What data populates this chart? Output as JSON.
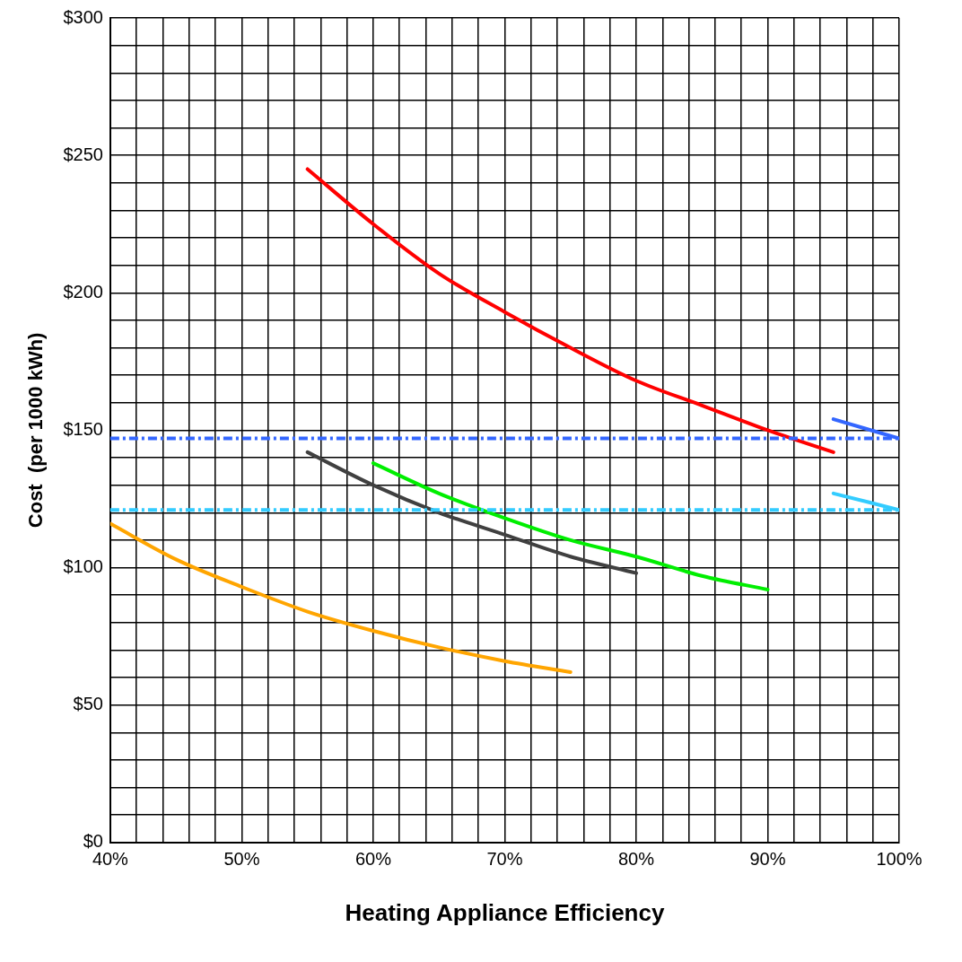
{
  "chart_data": {
    "type": "line",
    "xlabel": "Heating Appliance Efficiency",
    "ylabel": "Cost  (per 1000 kWh)",
    "xlim": [
      40,
      100
    ],
    "ylim": [
      0,
      300
    ],
    "xticks": [
      {
        "value": 40,
        "label": "40%"
      },
      {
        "value": 42,
        "label": null
      },
      {
        "value": 44,
        "label": null
      },
      {
        "value": 46,
        "label": null
      },
      {
        "value": 48,
        "label": null
      },
      {
        "value": 50,
        "label": "50%"
      },
      {
        "value": 52,
        "label": null
      },
      {
        "value": 54,
        "label": null
      },
      {
        "value": 56,
        "label": null
      },
      {
        "value": 58,
        "label": null
      },
      {
        "value": 60,
        "label": "60%"
      },
      {
        "value": 62,
        "label": null
      },
      {
        "value": 64,
        "label": null
      },
      {
        "value": 66,
        "label": null
      },
      {
        "value": 68,
        "label": null
      },
      {
        "value": 70,
        "label": "70%"
      },
      {
        "value": 72,
        "label": null
      },
      {
        "value": 74,
        "label": null
      },
      {
        "value": 76,
        "label": null
      },
      {
        "value": 78,
        "label": null
      },
      {
        "value": 80,
        "label": "80%"
      },
      {
        "value": 82,
        "label": null
      },
      {
        "value": 84,
        "label": null
      },
      {
        "value": 86,
        "label": null
      },
      {
        "value": 88,
        "label": null
      },
      {
        "value": 90,
        "label": "90%"
      },
      {
        "value": 92,
        "label": null
      },
      {
        "value": 94,
        "label": null
      },
      {
        "value": 96,
        "label": null
      },
      {
        "value": 98,
        "label": null
      },
      {
        "value": 100,
        "label": "100%"
      }
    ],
    "yticks": [
      {
        "value": 0,
        "label": "$0"
      },
      {
        "value": 10,
        "label": null
      },
      {
        "value": 20,
        "label": null
      },
      {
        "value": 30,
        "label": null
      },
      {
        "value": 40,
        "label": null
      },
      {
        "value": 50,
        "label": "$50"
      },
      {
        "value": 60,
        "label": null
      },
      {
        "value": 70,
        "label": null
      },
      {
        "value": 80,
        "label": null
      },
      {
        "value": 90,
        "label": null
      },
      {
        "value": 100,
        "label": "$100"
      },
      {
        "value": 110,
        "label": null
      },
      {
        "value": 120,
        "label": null
      },
      {
        "value": 130,
        "label": null
      },
      {
        "value": 140,
        "label": null
      },
      {
        "value": 150,
        "label": "$150"
      },
      {
        "value": 160,
        "label": null
      },
      {
        "value": 170,
        "label": null
      },
      {
        "value": 180,
        "label": null
      },
      {
        "value": 190,
        "label": null
      },
      {
        "value": 200,
        "label": "$200"
      },
      {
        "value": 210,
        "label": null
      },
      {
        "value": 220,
        "label": null
      },
      {
        "value": 230,
        "label": null
      },
      {
        "value": 240,
        "label": null
      },
      {
        "value": 250,
        "label": "$250"
      },
      {
        "value": 260,
        "label": null
      },
      {
        "value": 270,
        "label": null
      },
      {
        "value": 280,
        "label": null
      },
      {
        "value": 290,
        "label": null
      },
      {
        "value": 300,
        "label": "$300"
      }
    ],
    "grid": true,
    "legend": false,
    "marker": "none",
    "line_style": "solid",
    "series": [
      {
        "color": "#ff0000",
        "x": [
          55,
          60,
          65,
          70,
          75,
          80,
          85,
          90,
          95
        ],
        "values": [
          245,
          225,
          207,
          193,
          180,
          168,
          159,
          150,
          142
        ]
      },
      {
        "color": "#404040",
        "x": [
          55,
          60,
          65,
          70,
          75,
          80
        ],
        "values": [
          142,
          130,
          120,
          112,
          104,
          98
        ]
      },
      {
        "color": "#00ee00",
        "x": [
          60,
          65,
          70,
          75,
          80,
          85,
          90
        ],
        "values": [
          138,
          127,
          118,
          110,
          104,
          97,
          92
        ]
      },
      {
        "color": "#ffa500",
        "x": [
          40,
          45,
          50,
          55,
          60,
          65,
          70,
          75
        ],
        "values": [
          116,
          103,
          93,
          84,
          77,
          71,
          66,
          62
        ]
      },
      {
        "color": "#3366ff",
        "x": [
          95,
          100
        ],
        "values": [
          154,
          147
        ]
      },
      {
        "color": "#33ccff",
        "x": [
          95,
          100
        ],
        "values": [
          127,
          121
        ]
      }
    ],
    "ref_lines": [
      {
        "axis": "y",
        "value": 147,
        "color": "#3366ff",
        "line_style": "dashed"
      },
      {
        "axis": "y",
        "value": 121,
        "color": "#33ccff",
        "line_style": "dashed"
      }
    ]
  }
}
